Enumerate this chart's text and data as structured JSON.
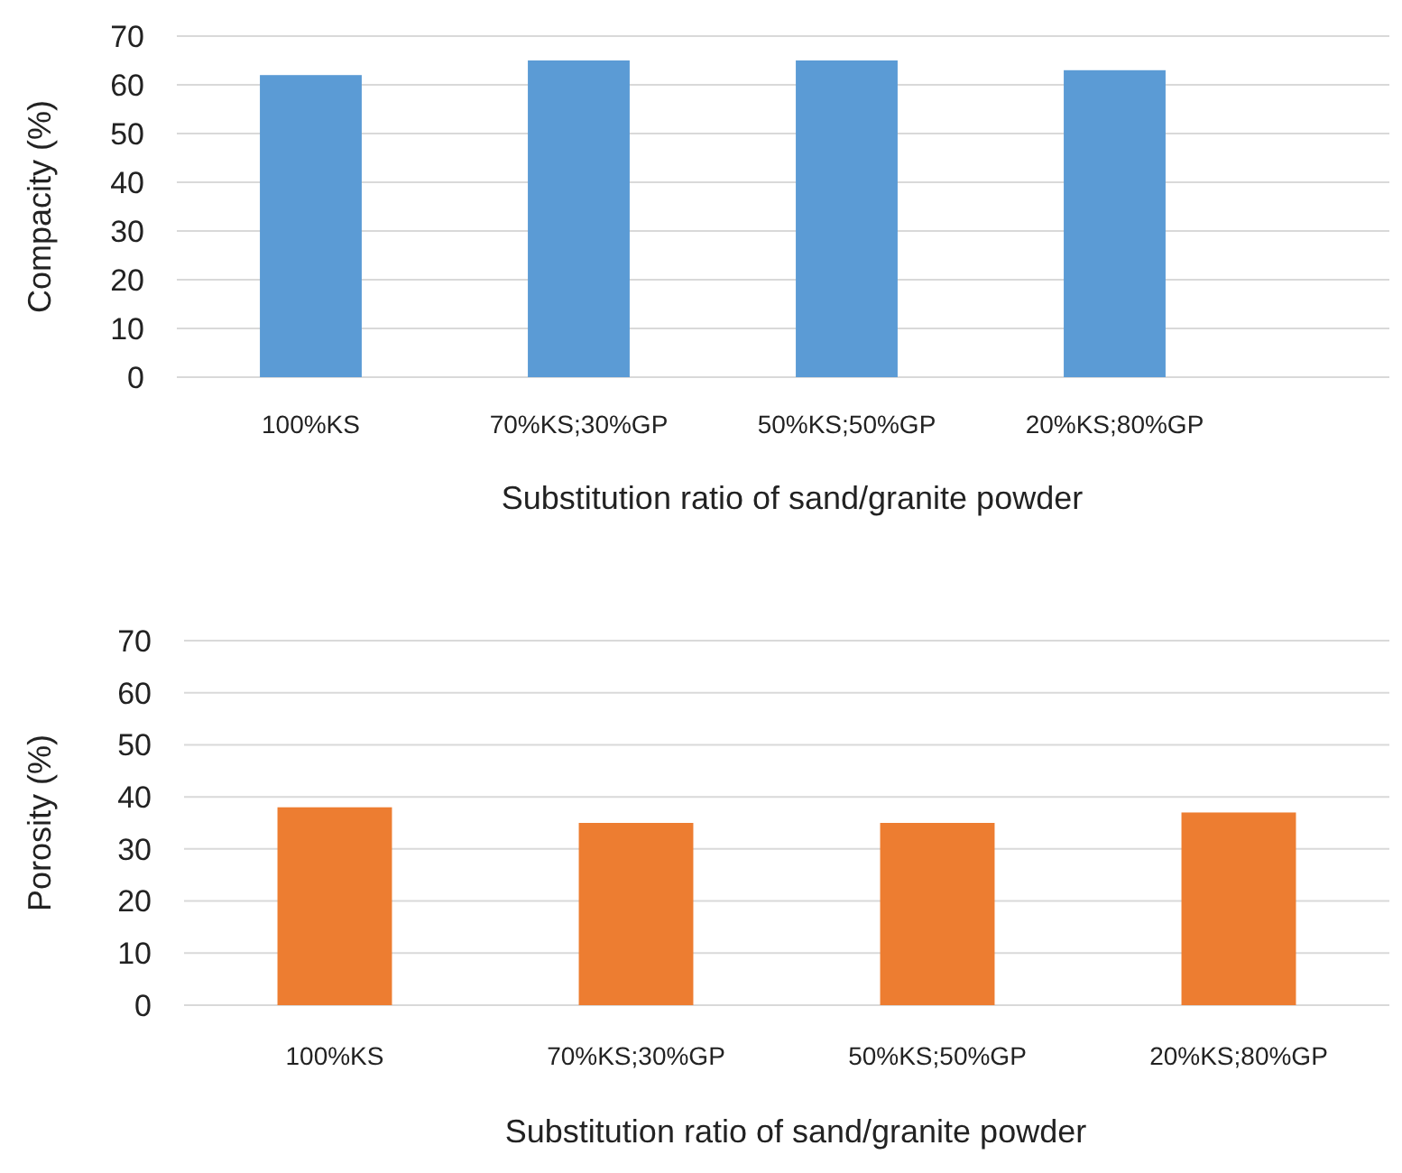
{
  "chart_data": [
    {
      "type": "bar",
      "xlabel": "Substitution ratio of sand/granite powder",
      "ylabel": "Compacity (%)",
      "categories": [
        "100%KS",
        "70%KS;30%GP",
        "50%KS;50%GP",
        "20%KS;80%GP"
      ],
      "values": [
        62,
        65,
        65,
        63
      ],
      "color": "#5b9bd5",
      "ylim": [
        0,
        70
      ],
      "yticks": [
        0,
        10,
        20,
        30,
        40,
        50,
        60,
        70
      ],
      "grid": "y"
    },
    {
      "type": "bar",
      "xlabel": "Substitution ratio of sand/granite powder",
      "ylabel": "Porosity (%)",
      "categories": [
        "100%KS",
        "70%KS;30%GP",
        "50%KS;50%GP",
        "20%KS;80%GP"
      ],
      "values": [
        38,
        35,
        35,
        37
      ],
      "color": "#ed7d31",
      "ylim": [
        0,
        70
      ],
      "yticks": [
        0,
        10,
        20,
        30,
        40,
        50,
        60,
        70
      ],
      "grid": "y"
    }
  ]
}
